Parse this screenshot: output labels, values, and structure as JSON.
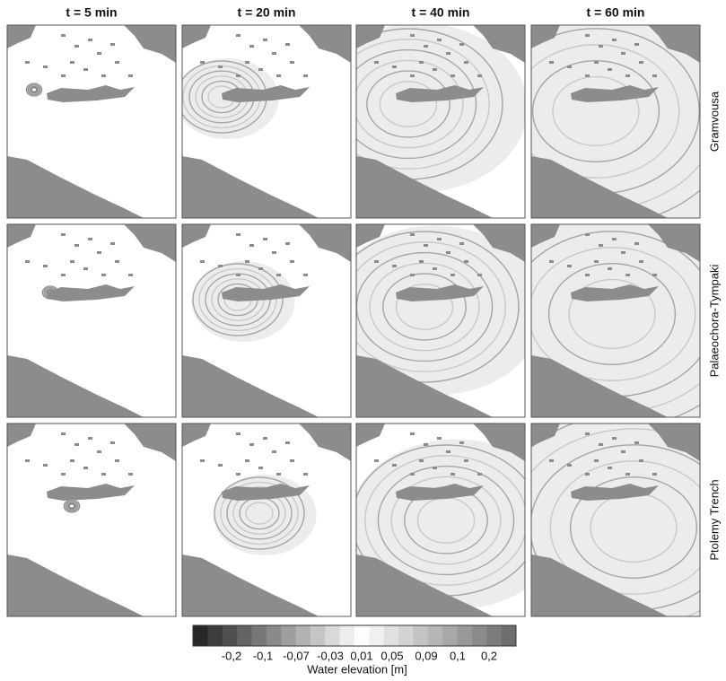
{
  "columns": [
    "t = 5 min",
    "t = 20 min",
    "t = 40 min",
    "t = 60 min"
  ],
  "rows": [
    "Gramvousa",
    "Palaeochora-Tympaki",
    "Ptolemy Trench"
  ],
  "colorbar": {
    "labels": [
      "-0,2",
      "-0,1",
      "-0,07",
      "-0,03",
      "0,01",
      "0,05",
      "0,09",
      "0,1",
      "0,2"
    ],
    "title": "Water elevation [m]"
  }
}
